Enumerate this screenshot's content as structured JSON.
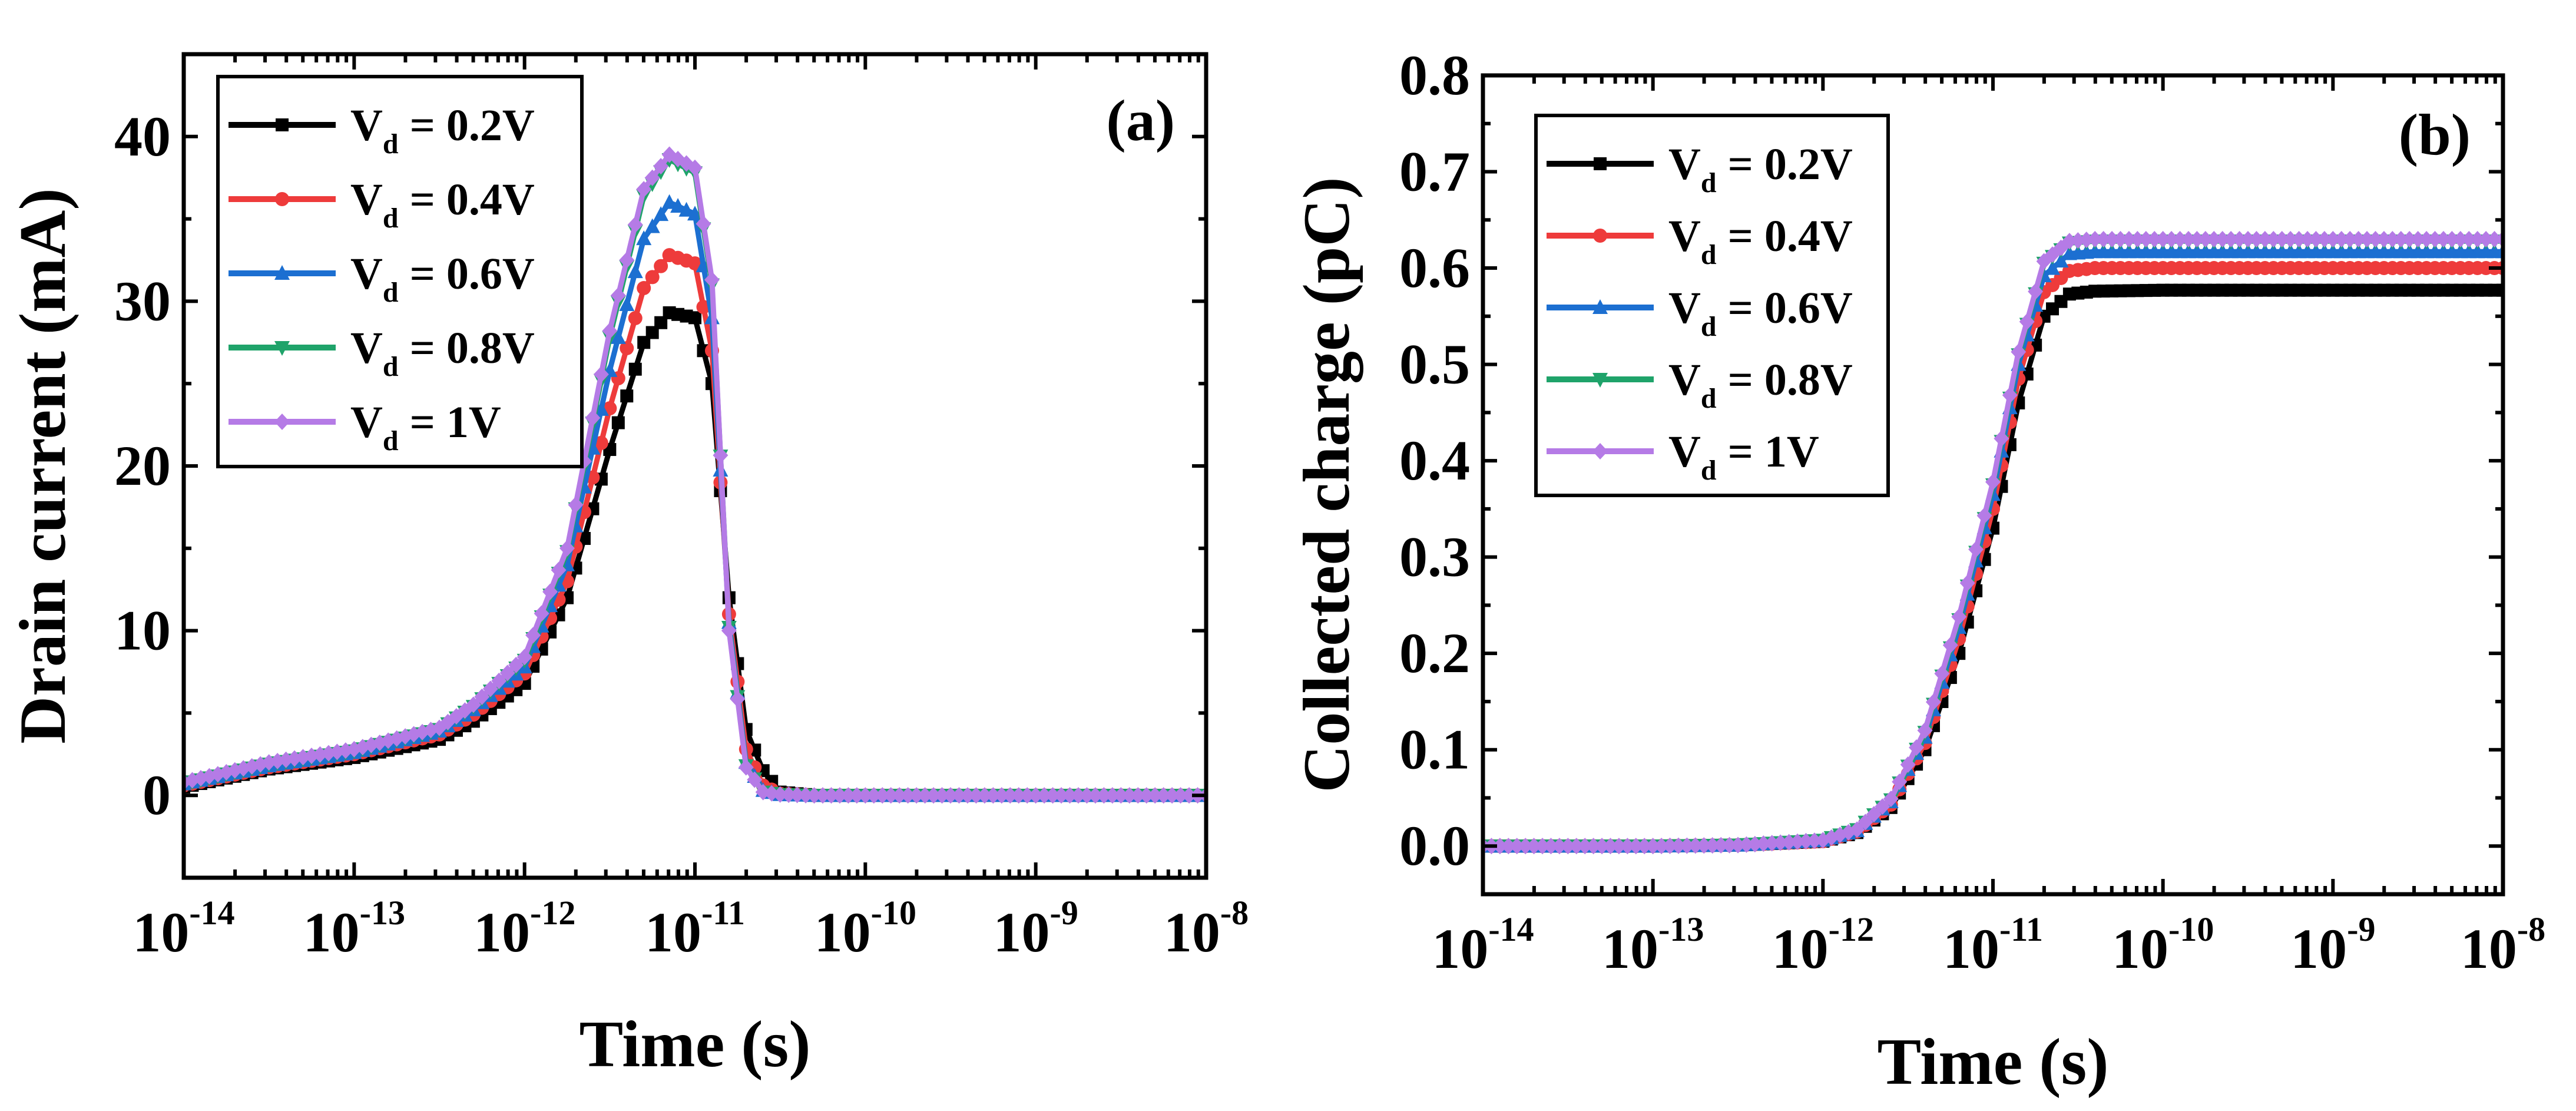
{
  "chart_data": [
    {
      "type": "line",
      "panel_label": "(a)",
      "xlabel": "Time (s)",
      "ylabel": "Drain current (mA)",
      "xscale": "log",
      "xlim_exp": [
        -14,
        -8
      ],
      "xtick_base": "10",
      "xtick_exponents": [
        "-14",
        "-13",
        "-12",
        "-11",
        "-10",
        "-9",
        "-8"
      ],
      "ylim": [
        -5,
        45
      ],
      "yticks": [
        0,
        10,
        20,
        30,
        40
      ],
      "ytick_labels": [
        "0",
        "10",
        "20",
        "30",
        "40"
      ],
      "legend_position": "top-left",
      "x_log10": [
        -14.0,
        -13.5,
        -13.0,
        -12.5,
        -12.3,
        -12.0,
        -11.75,
        -11.5,
        -11.3,
        -11.15,
        -11.0,
        -10.9,
        -10.8,
        -10.7,
        -10.6,
        -10.5,
        -10.3,
        -10.0,
        -9.5,
        -9.0,
        -8.5,
        -8.0
      ],
      "series": [
        {
          "name": "V_d = 0.2V",
          "legend_main": "V",
          "legend_sub": "d",
          "legend_rest": " = 0.2V",
          "color": "#000000",
          "marker": "square",
          "values": [
            0.5,
            1.6,
            2.3,
            3.4,
            4.5,
            6.8,
            12.0,
            21.0,
            27.5,
            29.3,
            29.0,
            25.0,
            12.0,
            4.0,
            1.5,
            0.2,
            0,
            0,
            0,
            0,
            0,
            0
          ]
        },
        {
          "name": "V_d = 0.4V",
          "legend_main": "V",
          "legend_sub": "d",
          "legend_rest": " = 0.4V",
          "color": "#ee3b3b",
          "marker": "circle",
          "values": [
            0.6,
            1.7,
            2.5,
            3.7,
            4.9,
            7.4,
            13.0,
            23.5,
            30.8,
            32.8,
            32.3,
            27.0,
            11.0,
            2.8,
            0.6,
            0.1,
            0,
            0,
            0,
            0,
            0,
            0
          ]
        },
        {
          "name": "V_d = 0.6V",
          "legend_main": "V",
          "legend_sub": "d",
          "legend_rest": " = 0.6V",
          "color": "#1c6fd1",
          "marker": "triangle-up",
          "values": [
            0.7,
            1.8,
            2.6,
            3.9,
            5.2,
            7.8,
            14.0,
            25.8,
            33.8,
            36.0,
            35.3,
            29.0,
            10.5,
            2.0,
            0.3,
            0.05,
            0,
            0,
            0,
            0,
            0,
            0
          ]
        },
        {
          "name": "V_d = 0.8V",
          "legend_main": "V",
          "legend_sub": "d",
          "legend_rest": " = 0.8V",
          "color": "#1fa36a",
          "marker": "triangle-down",
          "values": [
            0.7,
            1.9,
            2.7,
            4.0,
            5.4,
            8.2,
            14.8,
            27.8,
            36.4,
            38.6,
            37.8,
            31.0,
            10.2,
            1.8,
            0.2,
            0.05,
            0,
            0,
            0,
            0,
            0,
            0
          ]
        },
        {
          "name": "V_d = 1V",
          "legend_main": "V",
          "legend_sub": "d",
          "legend_rest": " = 1V",
          "color": "#b57be6",
          "marker": "diamond",
          "values": [
            0.8,
            2.0,
            2.8,
            4.1,
            5.5,
            8.4,
            15.0,
            28.2,
            36.8,
            38.9,
            38.1,
            31.3,
            10.0,
            1.7,
            0.2,
            0.05,
            0,
            0,
            0,
            0,
            0,
            0
          ]
        }
      ]
    },
    {
      "type": "line",
      "panel_label": "(b)",
      "xlabel": "Time (s)",
      "ylabel": "Collected charge (pC)",
      "xscale": "log",
      "xlim_exp": [
        -14,
        -8
      ],
      "xtick_base": "10",
      "xtick_exponents": [
        "-14",
        "-13",
        "-12",
        "-11",
        "-10",
        "-9",
        "-8"
      ],
      "ylim": [
        -0.05,
        0.8
      ],
      "yticks": [
        0.0,
        0.1,
        0.2,
        0.3,
        0.4,
        0.5,
        0.6,
        0.7,
        0.8
      ],
      "ytick_labels": [
        "0.0",
        "0.1",
        "0.2",
        "0.3",
        "0.4",
        "0.5",
        "0.6",
        "0.7",
        "0.8"
      ],
      "legend_position": "top-left",
      "x_log10": [
        -14.0,
        -13.0,
        -12.5,
        -12.0,
        -11.8,
        -11.6,
        -11.4,
        -11.2,
        -11.0,
        -10.85,
        -10.7,
        -10.55,
        -10.4,
        -10.0,
        -9.0,
        -8.0
      ],
      "series": [
        {
          "name": "V_d = 0.2V",
          "legend_main": "V",
          "legend_sub": "d",
          "legend_rest": " = 0.2V",
          "color": "#000000",
          "marker": "square",
          "values": [
            0,
            0,
            0.001,
            0.005,
            0.014,
            0.04,
            0.1,
            0.2,
            0.33,
            0.46,
            0.55,
            0.573,
            0.576,
            0.577,
            0.577,
            0.577
          ]
        },
        {
          "name": "V_d = 0.4V",
          "legend_main": "V",
          "legend_sub": "d",
          "legend_rest": " = 0.4V",
          "color": "#ee3b3b",
          "marker": "circle",
          "values": [
            0,
            0,
            0.001,
            0.005,
            0.015,
            0.043,
            0.107,
            0.215,
            0.35,
            0.485,
            0.575,
            0.597,
            0.6,
            0.6,
            0.6,
            0.6
          ]
        },
        {
          "name": "V_d = 0.6V",
          "legend_main": "V",
          "legend_sub": "d",
          "legend_rest": " = 0.6V",
          "color": "#1c6fd1",
          "marker": "triangle-up",
          "values": [
            0,
            0,
            0.001,
            0.006,
            0.016,
            0.046,
            0.113,
            0.227,
            0.365,
            0.5,
            0.592,
            0.615,
            0.617,
            0.617,
            0.617,
            0.617
          ]
        },
        {
          "name": "V_d = 0.8V",
          "legend_main": "V",
          "legend_sub": "d",
          "legend_rest": " = 0.8V",
          "color": "#1fa36a",
          "marker": "triangle-down",
          "values": [
            0,
            0,
            0.001,
            0.006,
            0.017,
            0.048,
            0.118,
            0.235,
            0.375,
            0.51,
            0.605,
            0.626,
            0.628,
            0.628,
            0.628,
            0.628
          ]
        },
        {
          "name": "V_d = 1V",
          "legend_main": "V",
          "legend_sub": "d",
          "legend_rest": " = 1V",
          "color": "#b57be6",
          "marker": "diamond",
          "values": [
            0,
            0,
            0.001,
            0.006,
            0.017,
            0.049,
            0.12,
            0.238,
            0.378,
            0.513,
            0.607,
            0.628,
            0.63,
            0.63,
            0.63,
            0.63
          ]
        }
      ]
    }
  ]
}
